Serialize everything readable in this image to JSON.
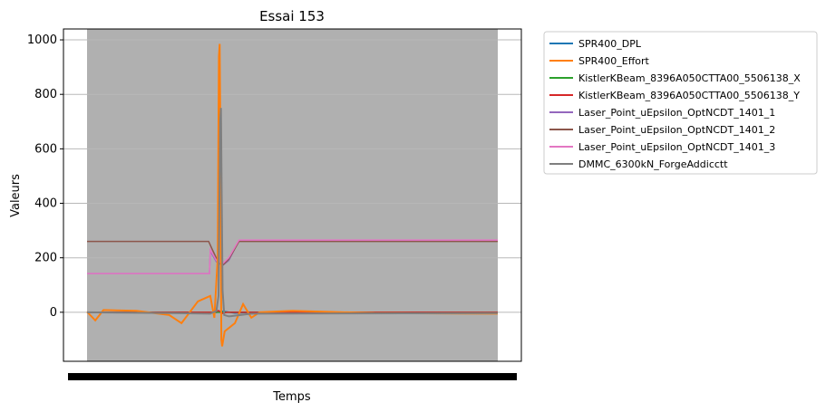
{
  "chart_data": {
    "type": "line",
    "title": "Essai 153",
    "xlabel": "Temps",
    "ylabel": "Valeurs",
    "ylim": [
      -180,
      1040
    ],
    "yticks": [
      0,
      200,
      400,
      600,
      800,
      1000
    ],
    "grid": true,
    "legend_position": "outside-right",
    "plot_background": "#b0b0b0",
    "series": [
      {
        "name": "SPR400_DPL",
        "color": "#1f77b4",
        "points": [
          [
            0,
            0
          ],
          [
            300,
            0
          ],
          [
            310,
            -2
          ],
          [
            330,
            4
          ],
          [
            360,
            -3
          ],
          [
            400,
            0
          ],
          [
            1000,
            0
          ]
        ]
      },
      {
        "name": "SPR400_Effort",
        "color": "#ff7f0e",
        "points": [
          [
            0,
            2
          ],
          [
            20,
            -30
          ],
          [
            40,
            8
          ],
          [
            120,
            5
          ],
          [
            200,
            -10
          ],
          [
            230,
            -40
          ],
          [
            270,
            40
          ],
          [
            300,
            60
          ],
          [
            310,
            -20
          ],
          [
            318,
            200
          ],
          [
            321,
            940
          ],
          [
            323,
            985
          ],
          [
            325,
            600
          ],
          [
            327,
            -100
          ],
          [
            329,
            -125
          ],
          [
            335,
            -70
          ],
          [
            360,
            -40
          ],
          [
            380,
            30
          ],
          [
            400,
            -20
          ],
          [
            420,
            0
          ],
          [
            500,
            5
          ],
          [
            700,
            -3
          ],
          [
            1000,
            -5
          ]
        ]
      },
      {
        "name": "KistlerKBeam_8396A050CTTA00_5506138_X",
        "color": "#2ca02c",
        "points": [
          [
            0,
            0
          ],
          [
            1000,
            0
          ]
        ]
      },
      {
        "name": "KistlerKBeam_8396A050CTTA00_5506138_Y",
        "color": "#d62728",
        "points": [
          [
            0,
            0
          ],
          [
            310,
            0
          ],
          [
            320,
            6
          ],
          [
            330,
            -4
          ],
          [
            340,
            0
          ],
          [
            1000,
            0
          ]
        ]
      },
      {
        "name": "Laser_Point_uEpsilon_OptNCDT_1401_1",
        "color": "#9467bd",
        "points": [
          [
            0,
            142
          ],
          [
            298,
            142
          ],
          [
            300,
            225
          ],
          [
            315,
            185
          ],
          [
            330,
            172
          ],
          [
            345,
            190
          ],
          [
            370,
            263
          ],
          [
            1000,
            263
          ]
        ]
      },
      {
        "name": "Laser_Point_uEpsilon_OptNCDT_1401_2",
        "color": "#8c564b",
        "points": [
          [
            0,
            260
          ],
          [
            296,
            260
          ],
          [
            305,
            230
          ],
          [
            320,
            182
          ],
          [
            332,
            175
          ],
          [
            345,
            195
          ],
          [
            370,
            260
          ],
          [
            1000,
            260
          ]
        ]
      },
      {
        "name": "Laser_Point_uEpsilon_OptNCDT_1401_3",
        "color": "#e377c2",
        "points": [
          [
            0,
            142
          ],
          [
            298,
            142
          ],
          [
            300,
            230
          ],
          [
            315,
            190
          ],
          [
            330,
            178
          ],
          [
            345,
            200
          ],
          [
            370,
            265
          ],
          [
            1000,
            265
          ]
        ]
      },
      {
        "name": "DMMC_6300kN_ForgeAddicctt",
        "color": "#7f7f7f",
        "points": [
          [
            0,
            0
          ],
          [
            200,
            -3
          ],
          [
            300,
            -5
          ],
          [
            315,
            5
          ],
          [
            320,
            60
          ],
          [
            324,
            700
          ],
          [
            326,
            750
          ],
          [
            328,
            400
          ],
          [
            330,
            80
          ],
          [
            334,
            -10
          ],
          [
            345,
            -15
          ],
          [
            400,
            -5
          ],
          [
            1000,
            -3
          ]
        ]
      }
    ]
  }
}
